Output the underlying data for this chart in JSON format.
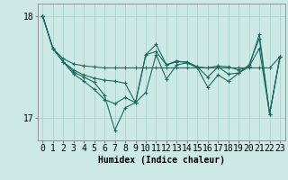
{
  "title": "",
  "xlabel": "Humidex (Indice chaleur)",
  "background_color": "#cce9e5",
  "grid_color": "#aad4cf",
  "line_color": "#1a6b60",
  "x": [
    0,
    1,
    2,
    3,
    4,
    5,
    6,
    7,
    8,
    9,
    10,
    11,
    12,
    13,
    14,
    15,
    16,
    17,
    18,
    19,
    20,
    21,
    22,
    23
  ],
  "series": [
    [
      18.0,
      17.68,
      17.58,
      17.53,
      17.51,
      17.5,
      17.49,
      17.49,
      17.49,
      17.49,
      17.49,
      17.49,
      17.49,
      17.49,
      17.49,
      17.49,
      17.49,
      17.49,
      17.49,
      17.49,
      17.49,
      17.49,
      17.49,
      17.6
    ],
    [
      18.0,
      17.68,
      17.55,
      17.47,
      17.42,
      17.39,
      17.37,
      17.36,
      17.34,
      17.15,
      17.62,
      17.65,
      17.52,
      17.55,
      17.55,
      17.5,
      17.49,
      17.51,
      17.5,
      17.47,
      17.5,
      17.68,
      17.04,
      17.6
    ],
    [
      18.0,
      17.68,
      17.55,
      17.45,
      17.4,
      17.35,
      17.22,
      16.88,
      17.1,
      17.15,
      17.25,
      17.62,
      17.38,
      17.52,
      17.54,
      17.49,
      17.3,
      17.42,
      17.36,
      17.44,
      17.5,
      17.82,
      17.04,
      17.6
    ],
    [
      18.0,
      17.68,
      17.55,
      17.43,
      17.36,
      17.28,
      17.18,
      17.14,
      17.2,
      17.15,
      17.62,
      17.72,
      17.52,
      17.56,
      17.54,
      17.5,
      17.4,
      17.5,
      17.43,
      17.44,
      17.52,
      17.78,
      17.04,
      17.6
    ]
  ],
  "ylim_min": 16.78,
  "ylim_max": 18.12,
  "yticks": [
    17.0,
    18.0
  ],
  "ytick_labels": [
    "17",
    "18"
  ],
  "xlim_min": -0.5,
  "xlim_max": 23.5,
  "marker": "+",
  "markersize": 3,
  "linewidth": 0.8,
  "xlabel_fontsize": 7,
  "tick_fontsize": 7
}
